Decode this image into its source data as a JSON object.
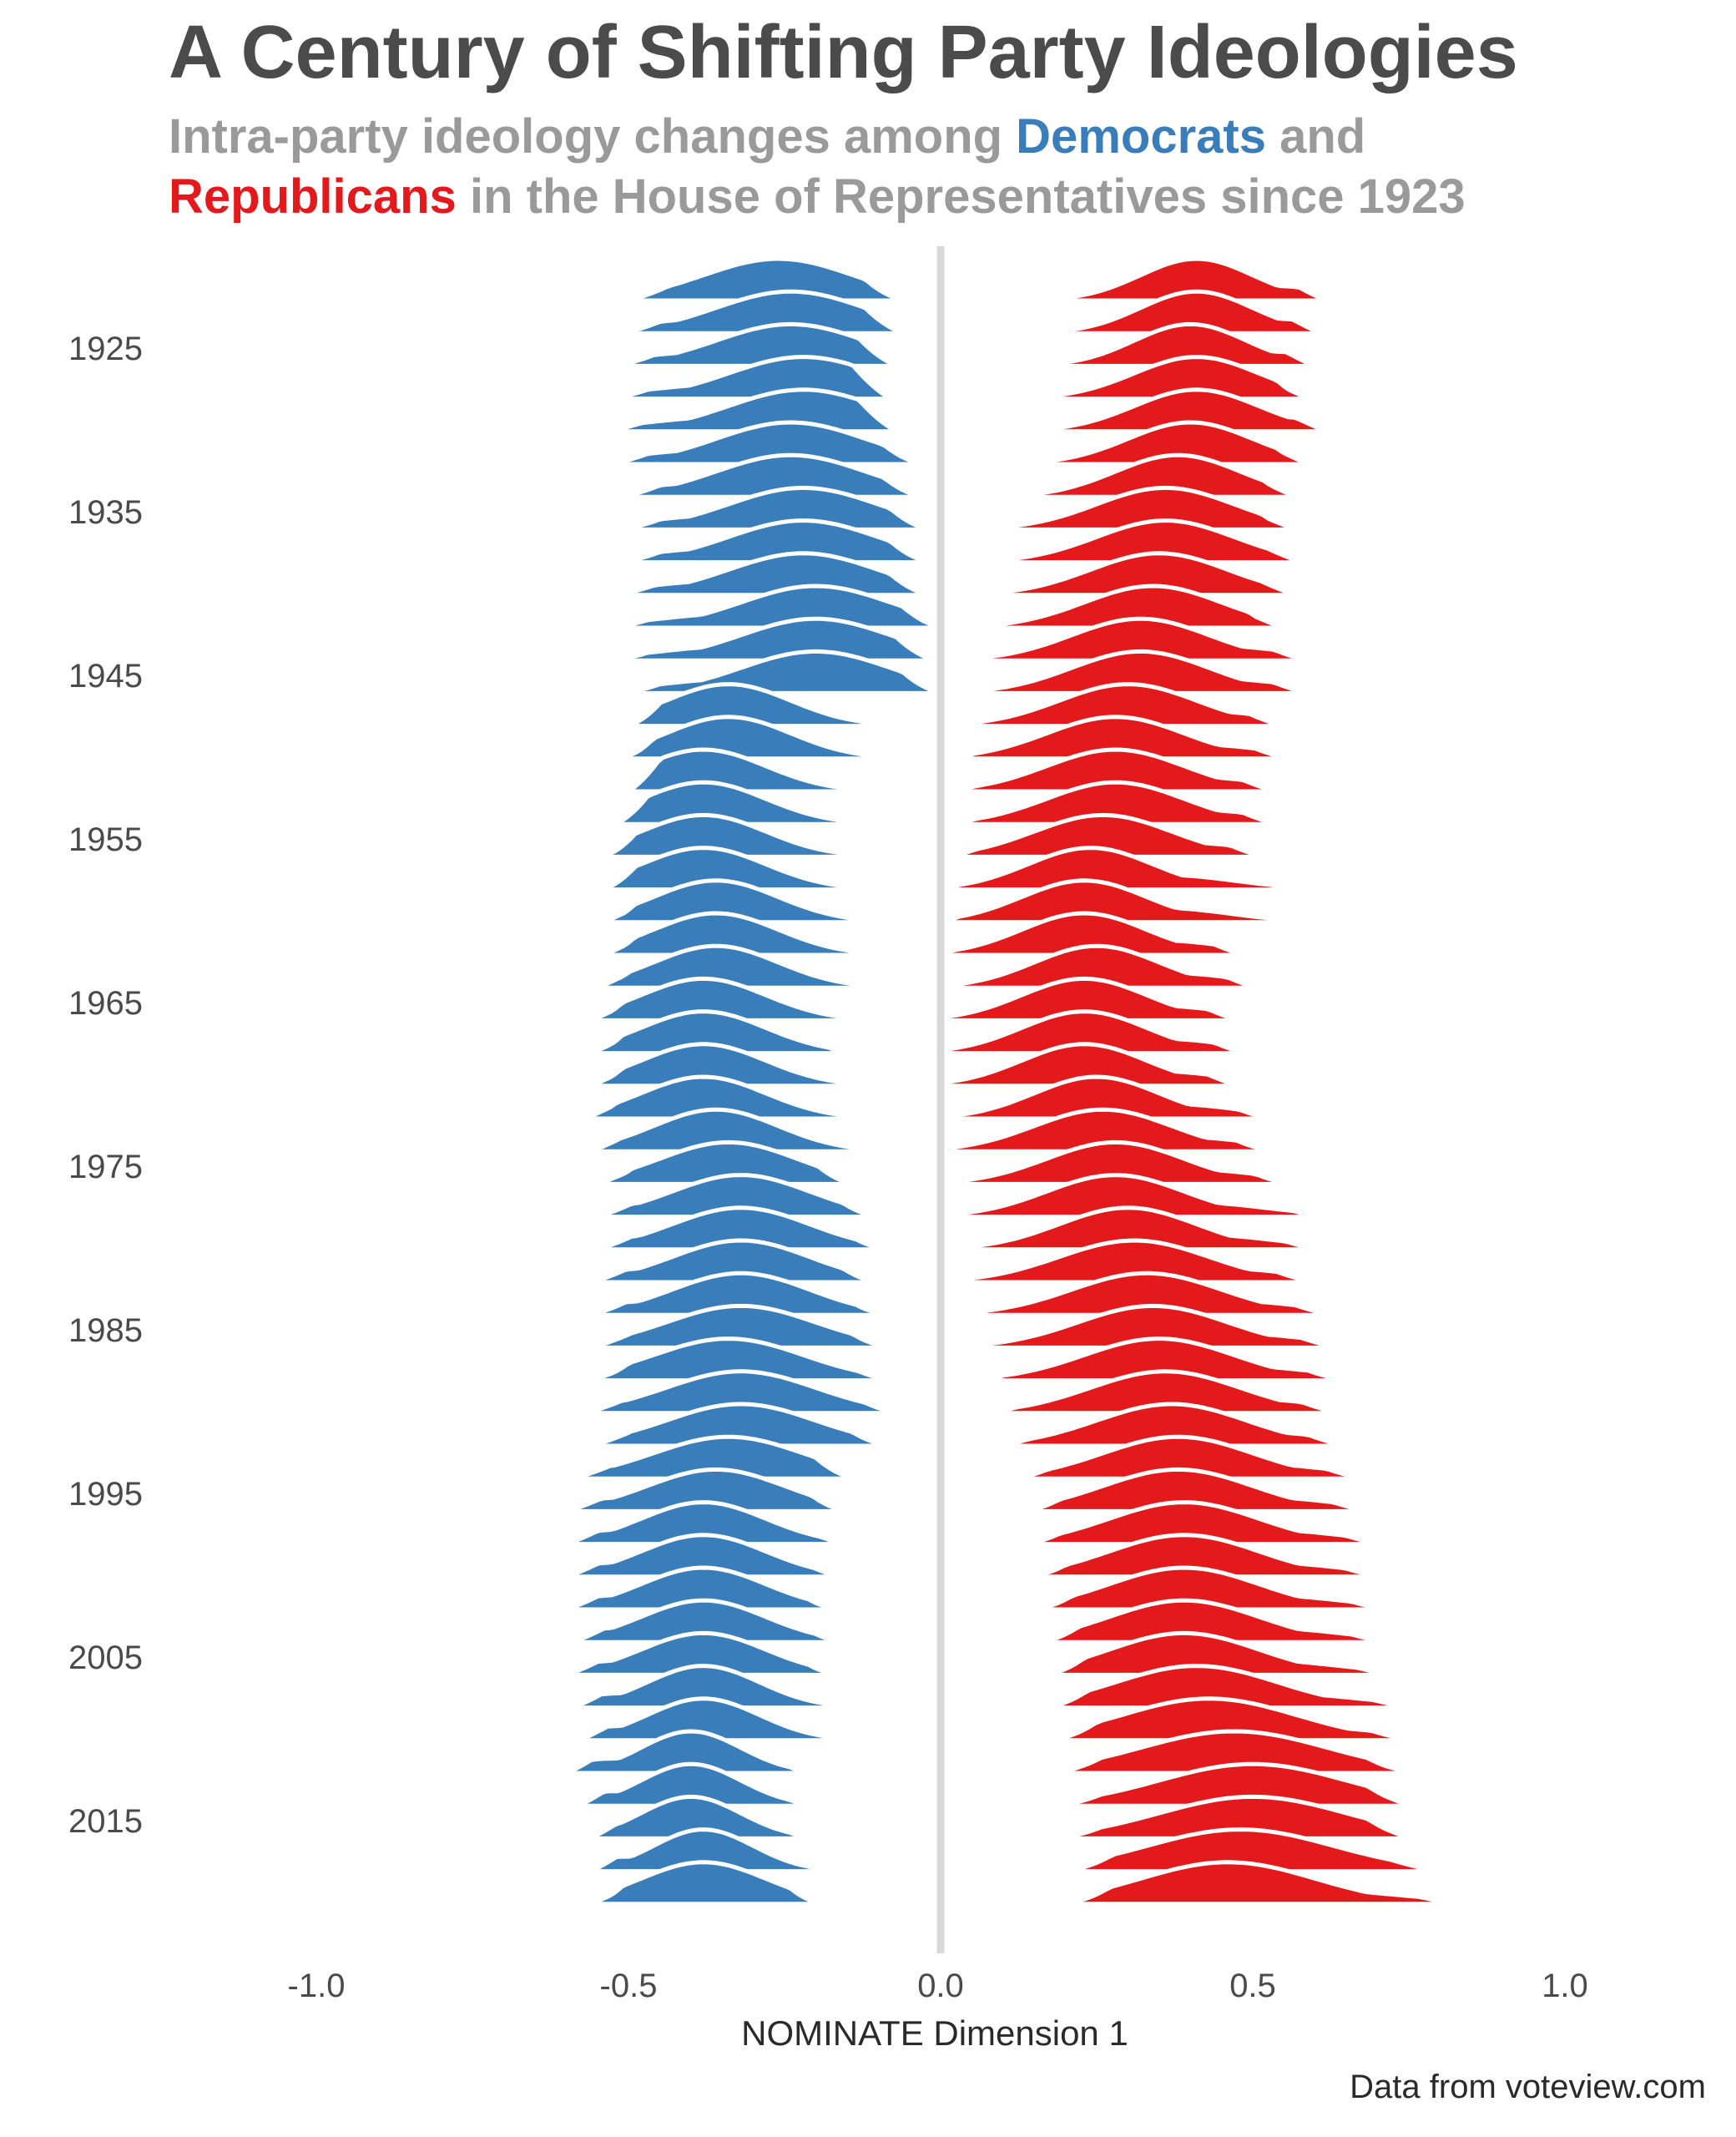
{
  "title": "A Century of Shifting Party Ideologies",
  "subtitle": {
    "line1_prefix": "Intra-party ideology changes among ",
    "line1_dem": "Democrats",
    "line1_suffix": " and",
    "line2_rep": "Republicans",
    "line2_suffix": " in the House of Representatives since 1923"
  },
  "caption": "Data from voteview.com",
  "colors": {
    "democrats": "#3a7dbb",
    "republicans": "#e3191c",
    "title": "#4b4b4b",
    "subtitle": "#9a9a9a",
    "zero_line": "#d9d9d9"
  },
  "chart_data": {
    "type": "ridgeline",
    "xlabel": "NOMINATE Dimension 1",
    "ylabel": "",
    "xlim": [
      -1.25,
      1.25
    ],
    "x_ticks": [
      -1.0,
      -0.5,
      0.0,
      0.5,
      1.0
    ],
    "x_tick_labels": [
      "-1.0",
      "-0.5",
      "0.0",
      "0.5",
      "1.0"
    ],
    "y_tick_labels": [
      "1925",
      "1935",
      "1945",
      "1955",
      "1965",
      "1975",
      "1985",
      "1995",
      "2005",
      "2015"
    ],
    "years": [
      1923,
      1925,
      1927,
      1929,
      1931,
      1933,
      1935,
      1937,
      1939,
      1941,
      1943,
      1945,
      1947,
      1949,
      1951,
      1953,
      1955,
      1957,
      1959,
      1961,
      1963,
      1965,
      1967,
      1969,
      1971,
      1973,
      1975,
      1977,
      1979,
      1981,
      1983,
      1985,
      1987,
      1989,
      1991,
      1993,
      1995,
      1997,
      1999,
      2001,
      2003,
      2005,
      2007,
      2009,
      2011,
      2013,
      2015,
      2017,
      2019,
      2021
    ],
    "grid": false,
    "legend": "none",
    "series": [
      {
        "name": "Democrats",
        "peak": [
          -0.26,
          -0.24,
          -0.24,
          -0.22,
          -0.22,
          -0.24,
          -0.24,
          -0.22,
          -0.22,
          -0.22,
          -0.2,
          -0.2,
          -0.2,
          -0.34,
          -0.34,
          -0.38,
          -0.38,
          -0.38,
          -0.38,
          -0.36,
          -0.36,
          -0.36,
          -0.38,
          -0.38,
          -0.38,
          -0.38,
          -0.36,
          -0.34,
          -0.32,
          -0.32,
          -0.32,
          -0.32,
          -0.32,
          -0.34,
          -0.32,
          -0.32,
          -0.34,
          -0.36,
          -0.38,
          -0.38,
          -0.38,
          -0.38,
          -0.38,
          -0.38,
          -0.38,
          -0.4,
          -0.4,
          -0.4,
          -0.38,
          -0.38
        ],
        "min": [
          -0.5,
          -0.51,
          -0.52,
          -0.53,
          -0.54,
          -0.53,
          -0.51,
          -0.51,
          -0.51,
          -0.52,
          -0.53,
          -0.53,
          -0.51,
          -0.5,
          -0.51,
          -0.5,
          -0.52,
          -0.54,
          -0.54,
          -0.54,
          -0.54,
          -0.55,
          -0.56,
          -0.56,
          -0.56,
          -0.57,
          -0.56,
          -0.55,
          -0.55,
          -0.55,
          -0.56,
          -0.56,
          -0.56,
          -0.56,
          -0.57,
          -0.56,
          -0.59,
          -0.6,
          -0.6,
          -0.6,
          -0.6,
          -0.59,
          -0.6,
          -0.59,
          -0.58,
          -0.6,
          -0.58,
          -0.56,
          -0.56,
          -0.56
        ],
        "max": [
          -0.06,
          -0.06,
          -0.07,
          -0.08,
          -0.07,
          -0.03,
          -0.03,
          -0.02,
          -0.02,
          -0.02,
          0.0,
          -0.01,
          0.0,
          -0.06,
          -0.04,
          -0.03,
          -0.02,
          -0.03,
          -0.02,
          -0.04,
          -0.07,
          -0.09,
          -0.09,
          -0.13,
          -0.1,
          -0.08,
          -0.09,
          -0.14,
          -0.1,
          -0.08,
          -0.1,
          -0.08,
          -0.08,
          -0.07,
          -0.06,
          -0.08,
          -0.14,
          -0.15,
          -0.14,
          -0.15,
          -0.16,
          -0.15,
          -0.16,
          -0.13,
          -0.11,
          -0.2,
          -0.2,
          -0.2,
          -0.15,
          -0.19
        ],
        "width": [
          0.12,
          0.12,
          0.12,
          0.12,
          0.12,
          0.12,
          0.12,
          0.12,
          0.12,
          0.12,
          0.12,
          0.12,
          0.12,
          0.1,
          0.1,
          0.1,
          0.1,
          0.1,
          0.1,
          0.1,
          0.1,
          0.1,
          0.1,
          0.1,
          0.1,
          0.1,
          0.1,
          0.11,
          0.11,
          0.11,
          0.11,
          0.11,
          0.12,
          0.12,
          0.12,
          0.12,
          0.12,
          0.11,
          0.1,
          0.1,
          0.1,
          0.1,
          0.1,
          0.09,
          0.09,
          0.08,
          0.08,
          0.08,
          0.08,
          0.1
        ]
      },
      {
        "name": "Republicans",
        "peak": [
          0.41,
          0.41,
          0.4,
          0.41,
          0.41,
          0.4,
          0.38,
          0.36,
          0.36,
          0.35,
          0.34,
          0.32,
          0.32,
          0.3,
          0.28,
          0.28,
          0.28,
          0.26,
          0.24,
          0.23,
          0.23,
          0.25,
          0.23,
          0.23,
          0.23,
          0.25,
          0.26,
          0.28,
          0.28,
          0.3,
          0.31,
          0.33,
          0.34,
          0.35,
          0.36,
          0.37,
          0.38,
          0.38,
          0.39,
          0.39,
          0.39,
          0.39,
          0.39,
          0.41,
          0.43,
          0.47,
          0.5,
          0.5,
          0.48,
          0.46
        ],
        "min": [
          0.17,
          0.14,
          0.13,
          0.1,
          0.08,
          0.06,
          0.04,
          0.03,
          0.01,
          0.0,
          0.01,
          0.0,
          0.0,
          0.0,
          0.0,
          0.0,
          0.0,
          0.0,
          -0.02,
          -0.02,
          -0.03,
          -0.07,
          -0.07,
          -0.06,
          -0.04,
          -0.02,
          -0.03,
          -0.05,
          -0.05,
          -0.02,
          -0.02,
          0.0,
          0.02,
          0.04,
          0.06,
          0.08,
          0.11,
          0.13,
          0.13,
          0.14,
          0.15,
          0.16,
          0.17,
          0.17,
          0.18,
          0.18,
          0.18,
          0.18,
          0.2,
          0.2
        ],
        "max": [
          0.62,
          0.61,
          0.6,
          0.59,
          0.62,
          0.59,
          0.57,
          0.57,
          0.58,
          0.57,
          0.55,
          0.59,
          0.59,
          0.55,
          0.56,
          0.54,
          0.54,
          0.52,
          0.59,
          0.6,
          0.49,
          0.51,
          0.48,
          0.49,
          0.48,
          0.53,
          0.53,
          0.56,
          0.62,
          0.61,
          0.6,
          0.63,
          0.64,
          0.65,
          0.64,
          0.65,
          0.68,
          0.69,
          0.71,
          0.71,
          0.72,
          0.72,
          0.73,
          0.76,
          0.76,
          0.76,
          0.76,
          0.76,
          0.8,
          0.84
        ],
        "width": [
          0.09,
          0.09,
          0.09,
          0.1,
          0.1,
          0.1,
          0.1,
          0.11,
          0.11,
          0.11,
          0.11,
          0.11,
          0.11,
          0.11,
          0.11,
          0.11,
          0.11,
          0.11,
          0.1,
          0.1,
          0.1,
          0.1,
          0.1,
          0.1,
          0.1,
          0.1,
          0.11,
          0.11,
          0.11,
          0.11,
          0.12,
          0.12,
          0.12,
          0.12,
          0.12,
          0.12,
          0.12,
          0.12,
          0.12,
          0.12,
          0.12,
          0.12,
          0.12,
          0.13,
          0.14,
          0.15,
          0.15,
          0.15,
          0.15,
          0.14
        ]
      }
    ]
  }
}
